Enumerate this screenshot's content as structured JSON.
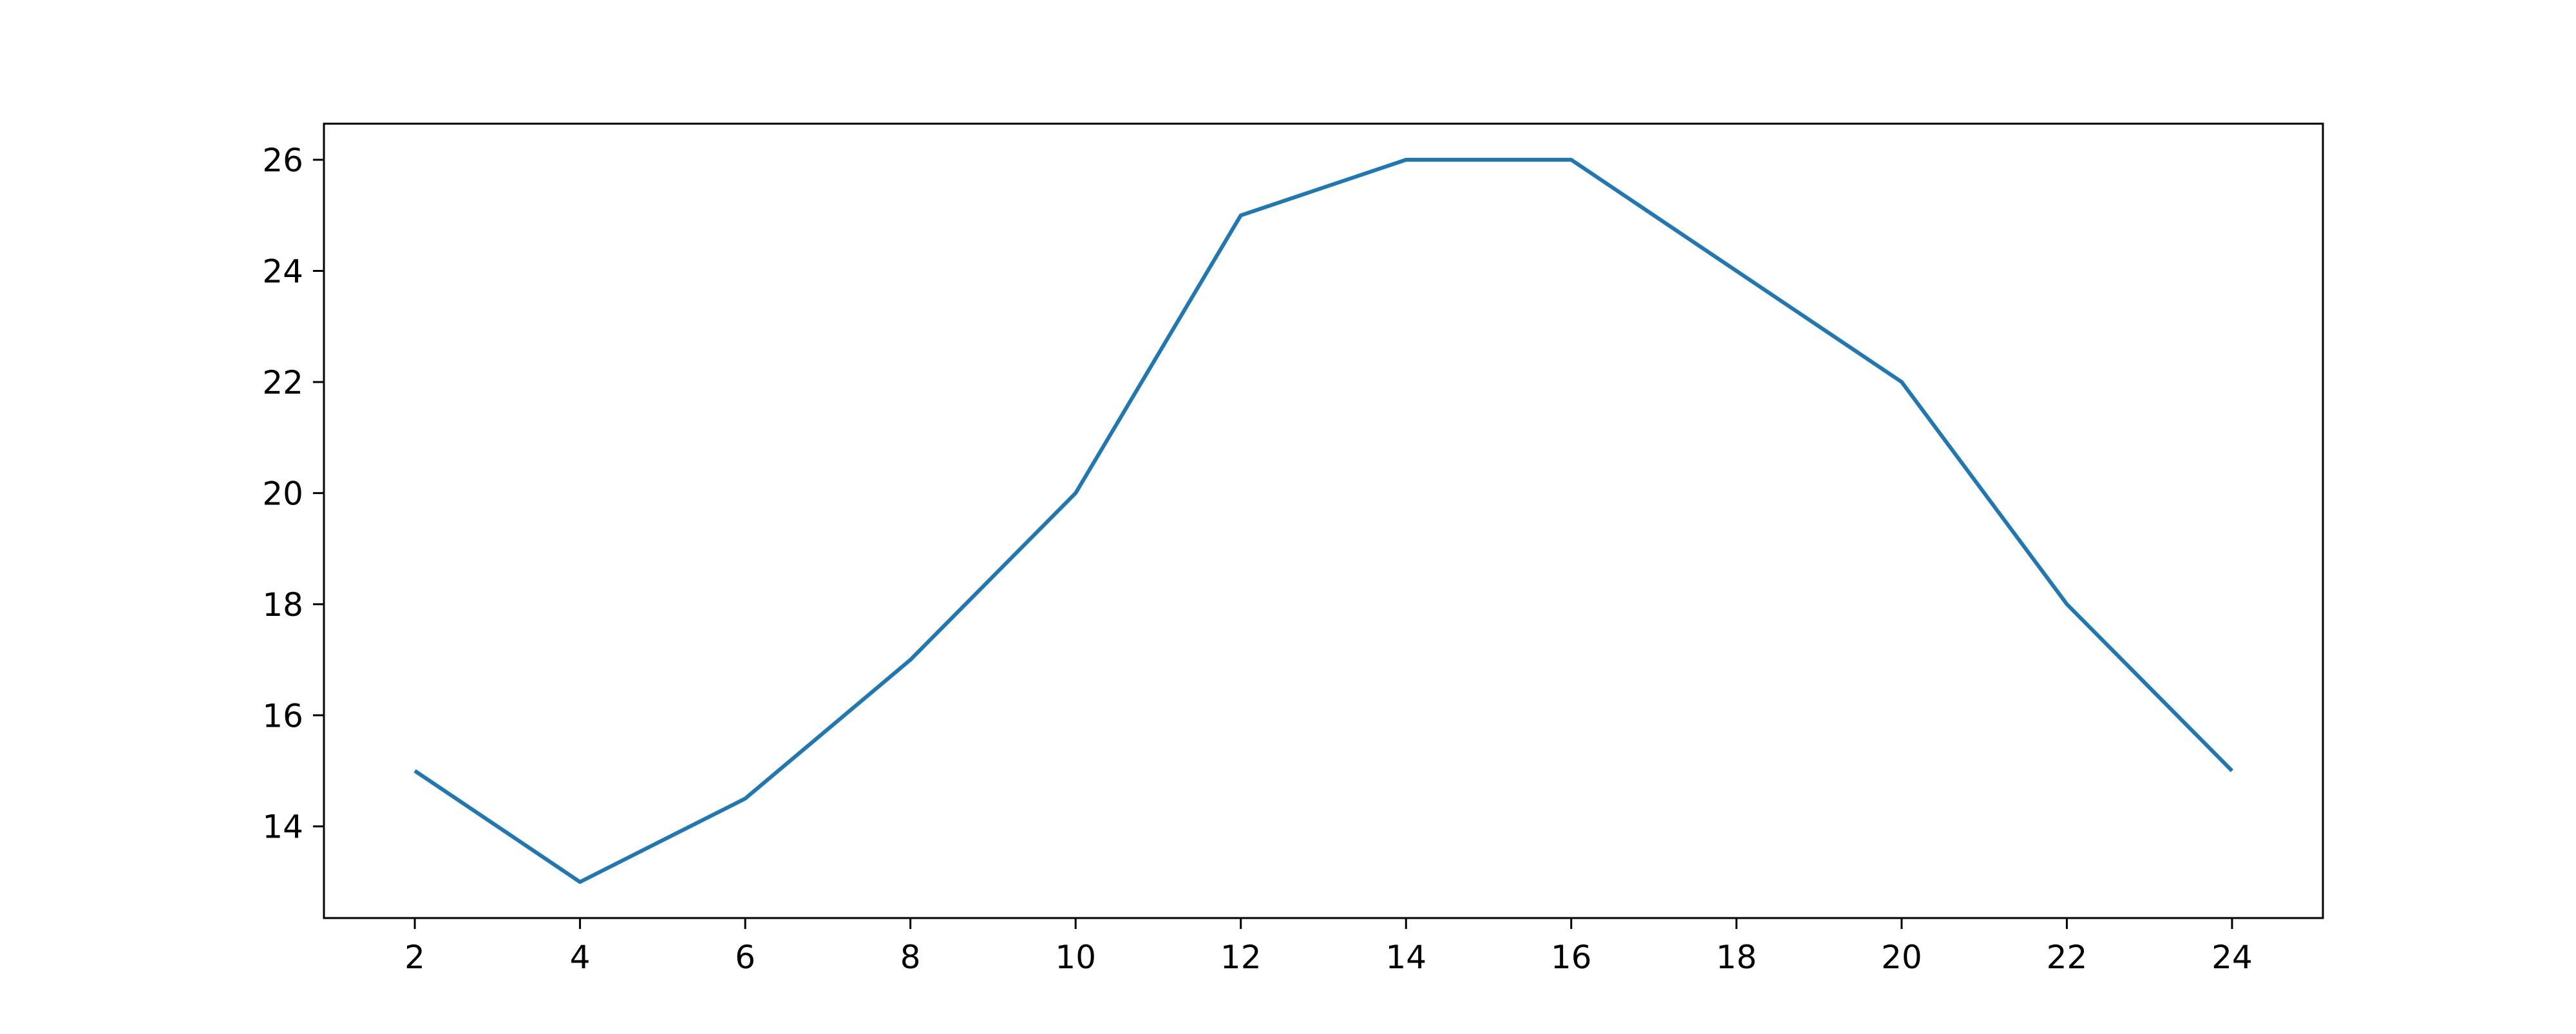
{
  "chart_data": {
    "type": "line",
    "title": "",
    "xlabel": "",
    "ylabel": "",
    "x": [
      2,
      4,
      6,
      8,
      10,
      12,
      14,
      16,
      18,
      20,
      22,
      24
    ],
    "series": [
      {
        "values": [
          15,
          13,
          14.5,
          17,
          20,
          25,
          26,
          26,
          24,
          22,
          18,
          15
        ],
        "color": "#1f77b4"
      }
    ],
    "xlim": [
      0.9,
      25.1
    ],
    "ylim": [
      12.35,
      26.65
    ],
    "xticks": [
      2,
      4,
      6,
      8,
      10,
      12,
      14,
      16,
      18,
      20,
      22,
      24
    ],
    "yticks": [
      14,
      16,
      18,
      20,
      22,
      24,
      26
    ],
    "grid": false,
    "legend": "none"
  }
}
